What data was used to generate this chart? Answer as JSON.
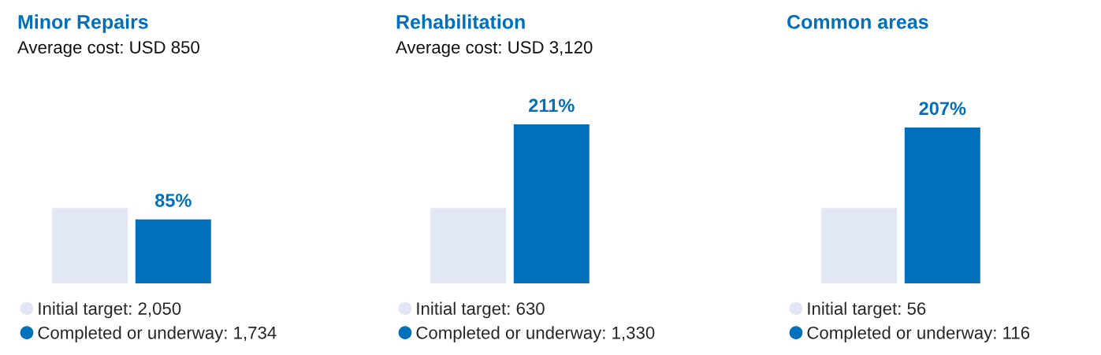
{
  "chart_data": [
    {
      "type": "bar",
      "title": "Minor Repairs",
      "subtitle": "Average cost: USD 850",
      "categories": [
        null
      ],
      "legend": "bottom",
      "series": [
        {
          "name": "Initial target: 2,050",
          "color": "#e1e8f4",
          "values": [
            100
          ]
        },
        {
          "name": "Completed or underway: 1,734",
          "color": "#0070ba",
          "values": [
            85
          ],
          "value_labels": [
            "85%"
          ]
        }
      ]
    },
    {
      "type": "bar",
      "title": "Rehabilitation",
      "subtitle": "Average cost: USD 3,120",
      "categories": [
        null
      ],
      "legend": "bottom",
      "series": [
        {
          "name": "Initial target: 630",
          "color": "#e1e8f4",
          "values": [
            100
          ]
        },
        {
          "name": "Completed or underway: 1,330",
          "color": "#0070ba",
          "values": [
            211
          ],
          "value_labels": [
            "211%"
          ]
        }
      ]
    },
    {
      "type": "bar",
      "title": "Common areas",
      "categories": [
        null
      ],
      "legend": "bottom",
      "series": [
        {
          "name": "Initial target: 56",
          "color": "#e1e8f4",
          "values": [
            100
          ]
        },
        {
          "name": "Completed or underway: 116",
          "color": "#0070ba",
          "values": [
            207
          ],
          "value_labels": [
            "207%"
          ]
        }
      ]
    }
  ]
}
